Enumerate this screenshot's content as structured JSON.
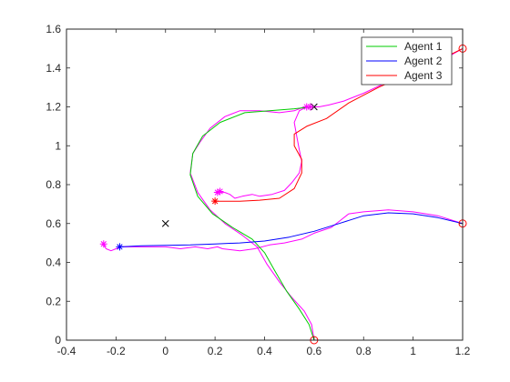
{
  "chart_data": {
    "type": "line",
    "xlim": [
      -0.4,
      1.2
    ],
    "ylim": [
      0,
      1.6
    ],
    "xticks": [
      -0.4,
      -0.2,
      0,
      0.2,
      0.4,
      0.6,
      0.8,
      1,
      1.2
    ],
    "yticks": [
      0,
      0.2,
      0.4,
      0.6,
      0.8,
      1,
      1.2,
      1.4,
      1.6
    ],
    "xtick_labels": [
      "-0.4",
      "-0.2",
      "0",
      "0.2",
      "0.4",
      "0.6",
      "0.8",
      "1",
      "1.2"
    ],
    "ytick_labels": [
      "0",
      "0.2",
      "0.4",
      "0.6",
      "0.8",
      "1",
      "1.2",
      "1.4",
      "1.6"
    ],
    "grid": false,
    "legend_position": "top-right",
    "legend": [
      "Agent 1",
      "Agent 2",
      "Agent 3"
    ],
    "series": [
      {
        "name": "Agent 1",
        "color": "#00cc00",
        "points": [
          [
            0.6,
            0.0
          ],
          [
            0.58,
            0.08
          ],
          [
            0.54,
            0.16
          ],
          [
            0.49,
            0.25
          ],
          [
            0.44,
            0.36
          ],
          [
            0.4,
            0.45
          ],
          [
            0.35,
            0.52
          ],
          [
            0.27,
            0.58
          ],
          [
            0.19,
            0.65
          ],
          [
            0.13,
            0.74
          ],
          [
            0.1,
            0.85
          ],
          [
            0.11,
            0.96
          ],
          [
            0.15,
            1.05
          ],
          [
            0.22,
            1.12
          ],
          [
            0.32,
            1.17
          ],
          [
            0.42,
            1.18
          ],
          [
            0.52,
            1.19
          ],
          [
            0.59,
            1.2
          ]
        ]
      },
      {
        "name": "Agent 2",
        "color": "#0000ff",
        "points": [
          [
            1.2,
            0.6
          ],
          [
            1.1,
            0.63
          ],
          [
            1.0,
            0.65
          ],
          [
            0.9,
            0.655
          ],
          [
            0.8,
            0.64
          ],
          [
            0.7,
            0.6
          ],
          [
            0.6,
            0.56
          ],
          [
            0.5,
            0.53
          ],
          [
            0.4,
            0.51
          ],
          [
            0.3,
            0.5
          ],
          [
            0.2,
            0.495
          ],
          [
            0.1,
            0.49
          ],
          [
            0.0,
            0.488
          ],
          [
            -0.1,
            0.485
          ],
          [
            -0.18,
            0.48
          ]
        ]
      },
      {
        "name": "Agent 3",
        "color": "#ff0000",
        "points": [
          [
            1.2,
            1.5
          ],
          [
            1.12,
            1.45
          ],
          [
            1.0,
            1.38
          ],
          [
            0.86,
            1.3
          ],
          [
            0.74,
            1.22
          ],
          [
            0.65,
            1.14
          ],
          [
            0.57,
            1.1
          ],
          [
            0.52,
            1.06
          ],
          [
            0.52,
            1.0
          ],
          [
            0.55,
            0.93
          ],
          [
            0.55,
            0.86
          ],
          [
            0.52,
            0.78
          ],
          [
            0.46,
            0.73
          ],
          [
            0.38,
            0.72
          ],
          [
            0.3,
            0.715
          ],
          [
            0.2,
            0.715
          ]
        ]
      }
    ],
    "extra_paths": [
      {
        "color": "#ff00ff",
        "points": [
          [
            0.6,
            0.0
          ],
          [
            0.59,
            0.08
          ],
          [
            0.56,
            0.15
          ],
          [
            0.51,
            0.22
          ],
          [
            0.46,
            0.3
          ],
          [
            0.41,
            0.39
          ],
          [
            0.37,
            0.48
          ],
          [
            0.31,
            0.54
          ],
          [
            0.24,
            0.6
          ],
          [
            0.18,
            0.67
          ],
          [
            0.13,
            0.76
          ],
          [
            0.1,
            0.86
          ],
          [
            0.11,
            0.96
          ],
          [
            0.14,
            1.02
          ],
          [
            0.18,
            1.09
          ],
          [
            0.24,
            1.15
          ],
          [
            0.3,
            1.18
          ],
          [
            0.38,
            1.18
          ],
          [
            0.46,
            1.17
          ],
          [
            0.52,
            1.18
          ],
          [
            0.56,
            1.2
          ]
        ]
      },
      {
        "color": "#ff00ff",
        "points": [
          [
            1.2,
            0.6
          ],
          [
            1.1,
            0.64
          ],
          [
            1.0,
            0.66
          ],
          [
            0.9,
            0.67
          ],
          [
            0.8,
            0.66
          ],
          [
            0.74,
            0.65
          ],
          [
            0.71,
            0.62
          ],
          [
            0.67,
            0.58
          ],
          [
            0.6,
            0.55
          ],
          [
            0.55,
            0.52
          ],
          [
            0.48,
            0.5
          ],
          [
            0.42,
            0.49
          ],
          [
            0.36,
            0.47
          ],
          [
            0.3,
            0.46
          ],
          [
            0.23,
            0.47
          ],
          [
            0.21,
            0.48
          ],
          [
            0.17,
            0.47
          ],
          [
            0.12,
            0.48
          ],
          [
            0.06,
            0.47
          ],
          [
            0.0,
            0.48
          ],
          [
            -0.08,
            0.48
          ],
          [
            -0.14,
            0.48
          ],
          [
            -0.18,
            0.48
          ],
          [
            -0.2,
            0.47
          ],
          [
            -0.22,
            0.46
          ],
          [
            -0.24,
            0.47
          ],
          [
            -0.25,
            0.49
          ]
        ]
      },
      {
        "color": "#ff00ff",
        "points": [
          [
            1.2,
            1.5
          ],
          [
            1.13,
            1.45
          ],
          [
            1.02,
            1.39
          ],
          [
            0.9,
            1.33
          ],
          [
            0.8,
            1.27
          ],
          [
            0.72,
            1.23
          ],
          [
            0.66,
            1.21
          ],
          [
            0.62,
            1.2
          ],
          [
            0.57,
            1.2
          ],
          [
            0.54,
            1.18
          ],
          [
            0.52,
            1.12
          ],
          [
            0.53,
            1.05
          ],
          [
            0.54,
            0.98
          ],
          [
            0.55,
            0.92
          ],
          [
            0.54,
            0.86
          ],
          [
            0.51,
            0.81
          ],
          [
            0.48,
            0.77
          ],
          [
            0.43,
            0.75
          ],
          [
            0.38,
            0.74
          ],
          [
            0.35,
            0.75
          ],
          [
            0.31,
            0.74
          ],
          [
            0.28,
            0.73
          ],
          [
            0.26,
            0.75
          ],
          [
            0.24,
            0.76
          ],
          [
            0.22,
            0.76
          ]
        ]
      }
    ],
    "markers": [
      {
        "shape": "circle",
        "color": "#ff0000",
        "x": 0.6,
        "y": 0.0
      },
      {
        "shape": "circle",
        "color": "#ff0000",
        "x": 1.2,
        "y": 0.6
      },
      {
        "shape": "circle",
        "color": "#ff0000",
        "x": 1.2,
        "y": 1.5
      },
      {
        "shape": "cross",
        "color": "#000000",
        "x": 0.0,
        "y": 0.6
      },
      {
        "shape": "cross",
        "color": "#000000",
        "x": 0.6,
        "y": 1.2
      },
      {
        "shape": "star",
        "color": "#ff00ff",
        "x": 0.57,
        "y": 1.2
      },
      {
        "shape": "star",
        "color": "#ff00ff",
        "x": 0.585,
        "y": 1.2
      },
      {
        "shape": "star",
        "color": "#ff00ff",
        "x": 0.21,
        "y": 0.76
      },
      {
        "shape": "star",
        "color": "#ff00ff",
        "x": 0.22,
        "y": 0.765
      },
      {
        "shape": "star",
        "color": "#ff00ff",
        "x": -0.25,
        "y": 0.495
      },
      {
        "shape": "star",
        "color": "#0000ff",
        "x": -0.185,
        "y": 0.48
      },
      {
        "shape": "star",
        "color": "#ff0000",
        "x": 0.2,
        "y": 0.715
      }
    ]
  }
}
